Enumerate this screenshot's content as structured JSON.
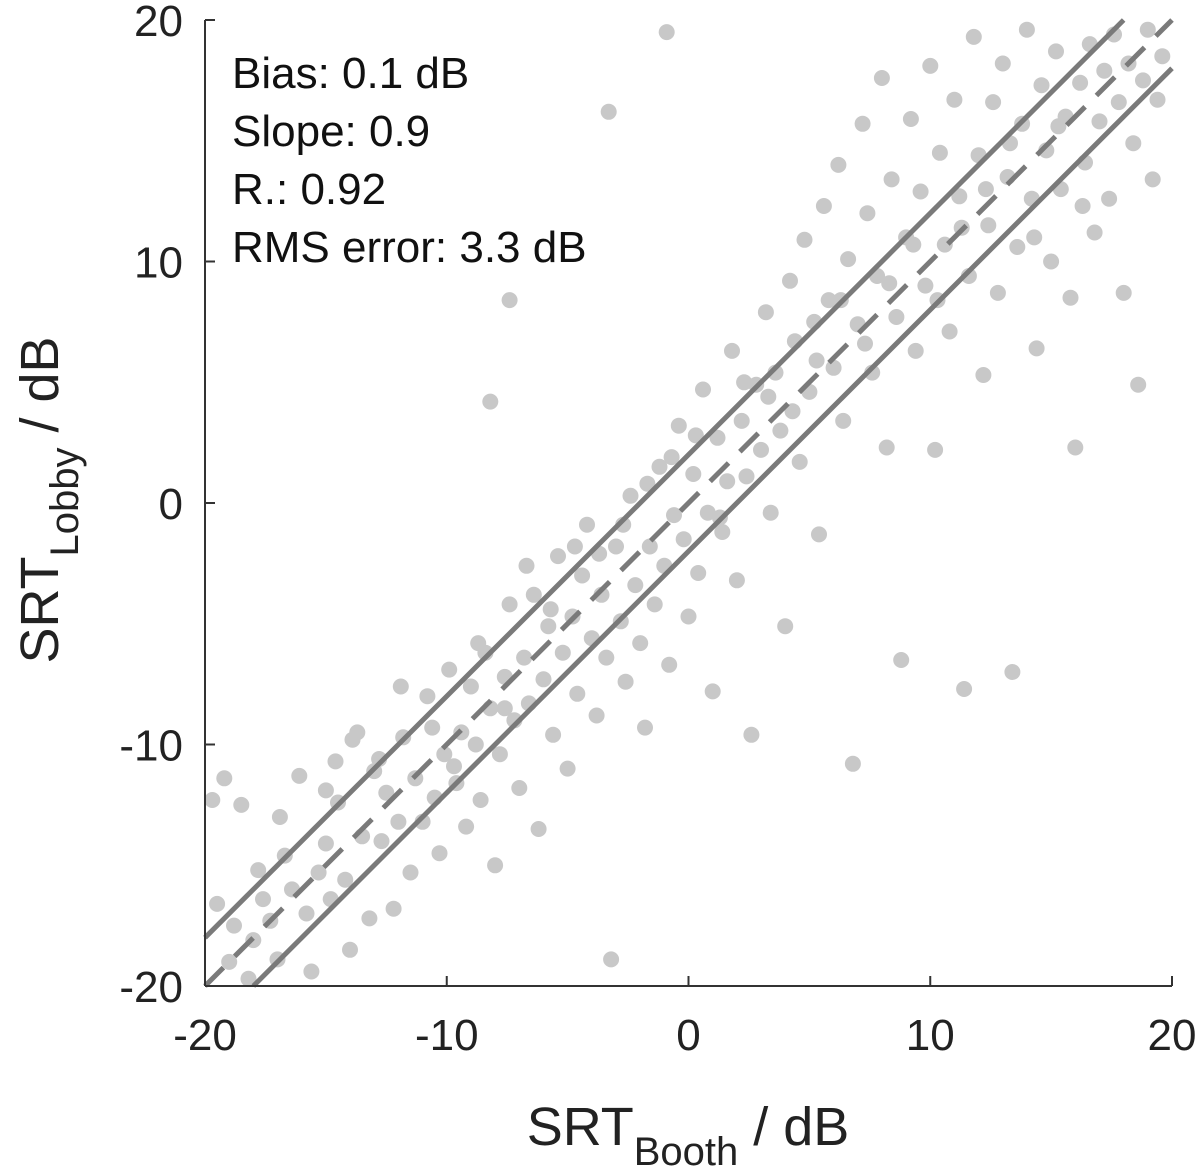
{
  "chart_data": {
    "type": "scatter",
    "title": "",
    "xlabel": {
      "main": "SRT",
      "sub": "Booth",
      "unit": " / dB"
    },
    "ylabel": {
      "main": "SRT",
      "sub": "Lobby",
      "unit": " / dB"
    },
    "xlim": [
      -20,
      20
    ],
    "ylim": [
      -20,
      20
    ],
    "x_ticks": [
      -20,
      -10,
      0,
      10,
      20
    ],
    "y_ticks": [
      -20,
      -10,
      0,
      10,
      20
    ],
    "x_tick_labels": [
      "-20",
      "-10",
      "0",
      "10",
      "20"
    ],
    "y_tick_labels": [
      "-20",
      "-10",
      "0",
      "10",
      "20"
    ],
    "grid": false,
    "annotations": [
      "Bias: 0.1 dB",
      "Slope: 0.9",
      "R.: 0.92",
      "RMS error: 3.3 dB"
    ],
    "colors": {
      "points": "#c8c8c8",
      "lines": "#7a7a7a",
      "axis": "#333333"
    },
    "reference_lines": [
      {
        "name": "identity",
        "style": "dashed",
        "from": [
          -20,
          -20
        ],
        "to": [
          20,
          20
        ]
      },
      {
        "name": "upper",
        "style": "solid",
        "from": [
          -20,
          -18
        ],
        "to": [
          18,
          20
        ]
      },
      {
        "name": "lower",
        "style": "solid",
        "from": [
          -18,
          -20
        ],
        "to": [
          20,
          18
        ]
      }
    ],
    "series": [
      {
        "points": [
          [
            -19.7,
            -12.3
          ],
          [
            -19.5,
            -16.6
          ],
          [
            -19.2,
            -11.4
          ],
          [
            -18.8,
            -17.5
          ],
          [
            -18.5,
            -12.5
          ],
          [
            -18.2,
            -19.7
          ],
          [
            -18.0,
            -18.1
          ],
          [
            -17.6,
            -16.4
          ],
          [
            -17.3,
            -17.3
          ],
          [
            -17.0,
            -18.9
          ],
          [
            -16.7,
            -14.6
          ],
          [
            -16.4,
            -16.0
          ],
          [
            -16.1,
            -11.3
          ],
          [
            -15.8,
            -17.0
          ],
          [
            -15.6,
            -19.4
          ],
          [
            -15.3,
            -15.3
          ],
          [
            -15.0,
            -14.1
          ],
          [
            -14.8,
            -16.4
          ],
          [
            -14.5,
            -12.4
          ],
          [
            -14.2,
            -15.6
          ],
          [
            -14.0,
            -18.5
          ],
          [
            -13.7,
            -9.5
          ],
          [
            -13.5,
            -13.8
          ],
          [
            -13.2,
            -17.2
          ],
          [
            -13.0,
            -11.1
          ],
          [
            -12.7,
            -14.0
          ],
          [
            -12.5,
            -12.0
          ],
          [
            -12.2,
            -16.8
          ],
          [
            -12.0,
            -13.2
          ],
          [
            -11.8,
            -9.7
          ],
          [
            -11.5,
            -15.3
          ],
          [
            -11.3,
            -11.4
          ],
          [
            -11.0,
            -13.2
          ],
          [
            -10.8,
            -8.0
          ],
          [
            -10.5,
            -12.2
          ],
          [
            -10.3,
            -14.5
          ],
          [
            -10.1,
            -10.4
          ],
          [
            -9.9,
            -6.9
          ],
          [
            -9.6,
            -11.6
          ],
          [
            -9.4,
            -9.5
          ],
          [
            -9.2,
            -13.4
          ],
          [
            -9.0,
            -7.6
          ],
          [
            -8.8,
            -10.0
          ],
          [
            -8.6,
            -12.3
          ],
          [
            -8.4,
            -6.2
          ],
          [
            -8.2,
            -8.5
          ],
          [
            -8.0,
            -15.0
          ],
          [
            -7.8,
            -10.4
          ],
          [
            -7.6,
            -7.2
          ],
          [
            -7.4,
            -4.2
          ],
          [
            -7.2,
            -9.0
          ],
          [
            -7.0,
            -11.8
          ],
          [
            -6.8,
            -6.4
          ],
          [
            -6.6,
            -8.3
          ],
          [
            -6.4,
            -3.8
          ],
          [
            -6.2,
            -13.5
          ],
          [
            -6.0,
            -7.3
          ],
          [
            -5.8,
            -5.1
          ],
          [
            -5.6,
            -9.6
          ],
          [
            -5.4,
            -2.2
          ],
          [
            -5.2,
            -6.2
          ],
          [
            -5.0,
            -11.0
          ],
          [
            -4.8,
            -4.7
          ],
          [
            -4.6,
            -7.9
          ],
          [
            -4.4,
            -3.0
          ],
          [
            -4.2,
            -0.9
          ],
          [
            -4.0,
            -5.6
          ],
          [
            -3.8,
            -8.8
          ],
          [
            -3.6,
            -3.8
          ],
          [
            -3.4,
            -6.4
          ],
          [
            -3.2,
            -18.9
          ],
          [
            -3.0,
            -1.8
          ],
          [
            -2.8,
            -4.9
          ],
          [
            -2.6,
            -7.4
          ],
          [
            -2.4,
            0.3
          ],
          [
            -2.2,
            -3.4
          ],
          [
            -2.0,
            -5.8
          ],
          [
            -1.8,
            -9.3
          ],
          [
            -1.6,
            -1.8
          ],
          [
            -1.4,
            -4.2
          ],
          [
            -1.2,
            1.5
          ],
          [
            -1.0,
            -2.6
          ],
          [
            -0.8,
            -6.7
          ],
          [
            -0.6,
            -0.5
          ],
          [
            -0.4,
            3.2
          ],
          [
            -0.2,
            -1.5
          ],
          [
            0.0,
            -4.7
          ],
          [
            0.2,
            1.2
          ],
          [
            0.4,
            -2.9
          ],
          [
            0.6,
            4.7
          ],
          [
            0.8,
            -0.4
          ],
          [
            1.0,
            -7.8
          ],
          [
            1.2,
            2.7
          ],
          [
            1.4,
            -1.2
          ],
          [
            1.6,
            0.9
          ],
          [
            1.8,
            6.3
          ],
          [
            2.0,
            -3.2
          ],
          [
            2.2,
            3.4
          ],
          [
            2.4,
            1.1
          ],
          [
            2.6,
            -9.6
          ],
          [
            2.8,
            4.9
          ],
          [
            3.0,
            2.2
          ],
          [
            3.2,
            7.9
          ],
          [
            3.4,
            -0.4
          ],
          [
            3.6,
            5.4
          ],
          [
            3.8,
            3.0
          ],
          [
            4.0,
            -5.1
          ],
          [
            4.2,
            9.2
          ],
          [
            4.4,
            6.7
          ],
          [
            4.6,
            1.7
          ],
          [
            4.8,
            10.9
          ],
          [
            5.0,
            4.6
          ],
          [
            5.2,
            7.5
          ],
          [
            5.4,
            -1.3
          ],
          [
            5.6,
            12.3
          ],
          [
            5.8,
            8.4
          ],
          [
            6.0,
            5.6
          ],
          [
            6.2,
            14.0
          ],
          [
            6.4,
            3.4
          ],
          [
            6.6,
            10.1
          ],
          [
            6.8,
            -10.8
          ],
          [
            7.0,
            7.4
          ],
          [
            7.2,
            15.7
          ],
          [
            7.4,
            12.0
          ],
          [
            7.6,
            5.4
          ],
          [
            7.8,
            9.4
          ],
          [
            8.0,
            17.6
          ],
          [
            8.2,
            2.3
          ],
          [
            8.4,
            13.4
          ],
          [
            8.6,
            7.7
          ],
          [
            8.8,
            -6.5
          ],
          [
            9.0,
            11.0
          ],
          [
            9.2,
            15.9
          ],
          [
            9.4,
            6.3
          ],
          [
            9.6,
            12.9
          ],
          [
            9.8,
            9.0
          ],
          [
            10.0,
            18.1
          ],
          [
            10.2,
            2.2
          ],
          [
            10.4,
            14.5
          ],
          [
            10.6,
            10.7
          ],
          [
            10.8,
            7.1
          ],
          [
            11.0,
            16.7
          ],
          [
            11.2,
            12.7
          ],
          [
            11.4,
            -7.7
          ],
          [
            11.6,
            9.4
          ],
          [
            11.8,
            19.3
          ],
          [
            12.0,
            14.4
          ],
          [
            12.2,
            5.3
          ],
          [
            12.4,
            11.5
          ],
          [
            12.6,
            16.6
          ],
          [
            12.8,
            8.7
          ],
          [
            13.0,
            18.2
          ],
          [
            13.2,
            13.5
          ],
          [
            13.4,
            -7.0
          ],
          [
            13.6,
            10.6
          ],
          [
            13.8,
            15.7
          ],
          [
            14.0,
            19.6
          ],
          [
            14.2,
            12.6
          ],
          [
            14.4,
            6.4
          ],
          [
            14.6,
            17.3
          ],
          [
            14.8,
            14.6
          ],
          [
            15.0,
            10.0
          ],
          [
            15.2,
            18.7
          ],
          [
            15.4,
            13.0
          ],
          [
            15.6,
            16.0
          ],
          [
            15.8,
            8.5
          ],
          [
            16.0,
            2.3
          ],
          [
            16.2,
            17.4
          ],
          [
            16.4,
            14.1
          ],
          [
            16.6,
            19.0
          ],
          [
            16.8,
            11.2
          ],
          [
            17.0,
            15.8
          ],
          [
            17.2,
            17.9
          ],
          [
            17.4,
            12.6
          ],
          [
            17.6,
            19.4
          ],
          [
            17.8,
            16.6
          ],
          [
            18.0,
            8.7
          ],
          [
            18.2,
            18.2
          ],
          [
            18.4,
            14.9
          ],
          [
            18.6,
            4.9
          ],
          [
            18.8,
            17.5
          ],
          [
            19.0,
            19.6
          ],
          [
            19.2,
            13.4
          ],
          [
            19.4,
            16.7
          ],
          [
            19.6,
            18.5
          ],
          [
            -19.0,
            -19.0
          ],
          [
            -17.8,
            -15.2
          ],
          [
            -16.9,
            -13.0
          ],
          [
            -15.0,
            -11.9
          ],
          [
            -13.9,
            -9.8
          ],
          [
            -12.8,
            -10.6
          ],
          [
            -11.9,
            -7.6
          ],
          [
            -10.6,
            -9.3
          ],
          [
            -9.7,
            -10.9
          ],
          [
            -8.7,
            -5.8
          ],
          [
            -7.6,
            -8.5
          ],
          [
            -6.7,
            -2.6
          ],
          [
            -5.7,
            -4.4
          ],
          [
            -4.7,
            -1.8
          ],
          [
            -3.7,
            -2.1
          ],
          [
            -2.7,
            -0.9
          ],
          [
            -1.7,
            0.8
          ],
          [
            -0.7,
            1.9
          ],
          [
            0.3,
            2.8
          ],
          [
            1.3,
            -0.6
          ],
          [
            2.3,
            5.0
          ],
          [
            3.3,
            4.4
          ],
          [
            4.3,
            3.8
          ],
          [
            5.3,
            5.9
          ],
          [
            6.3,
            8.4
          ],
          [
            7.3,
            6.6
          ],
          [
            8.3,
            9.1
          ],
          [
            9.3,
            10.7
          ],
          [
            10.3,
            8.4
          ],
          [
            11.3,
            11.4
          ],
          [
            12.3,
            13.0
          ],
          [
            13.3,
            14.9
          ],
          [
            14.3,
            11.0
          ],
          [
            15.3,
            15.6
          ],
          [
            16.3,
            12.3
          ],
          [
            -8.2,
            4.2
          ],
          [
            -7.4,
            8.4
          ],
          [
            -3.3,
            16.2
          ],
          [
            -0.9,
            19.5
          ],
          [
            -14.6,
            -10.7
          ]
        ]
      }
    ]
  }
}
